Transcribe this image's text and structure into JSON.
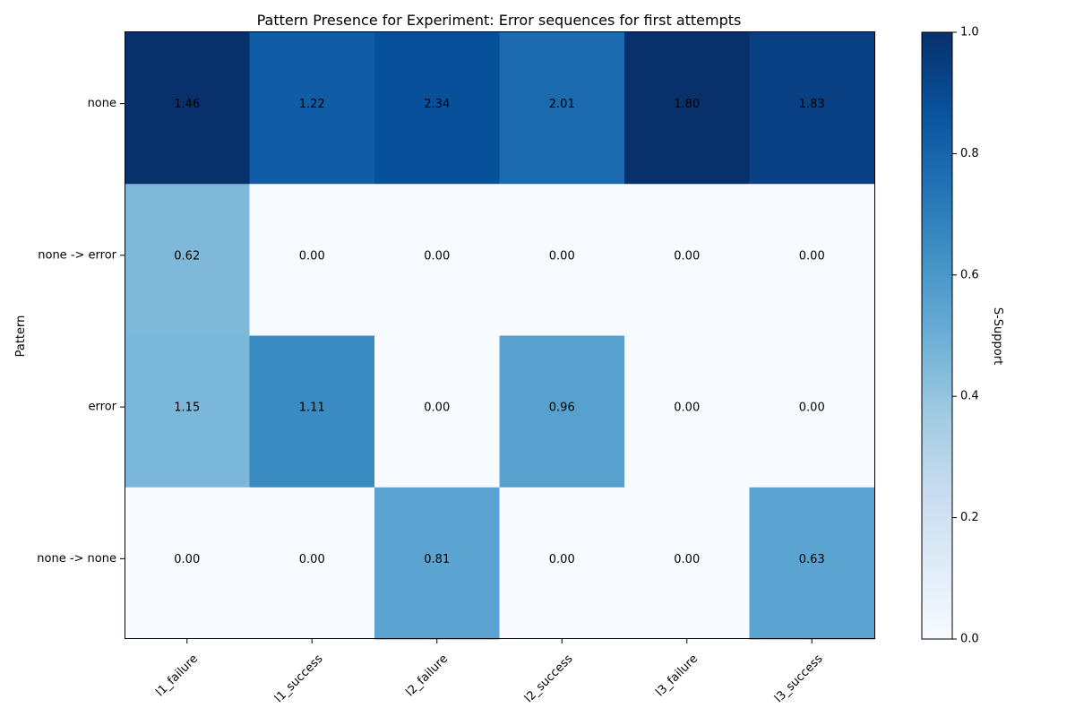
{
  "chart_data": {
    "type": "heatmap",
    "title": "Pattern Presence for Experiment: Error sequences for first attempts",
    "xlabel": "",
    "ylabel": "Pattern",
    "columns": [
      "l1_failure",
      "l1_success",
      "l2_failure",
      "l2_success",
      "l3_failure",
      "l3_success"
    ],
    "rows": [
      "none",
      "none -> error",
      "error",
      "none -> none"
    ],
    "annotations": [
      [
        "1.46",
        "1.22",
        "2.34",
        "2.01",
        "1.80",
        "1.83"
      ],
      [
        "0.62",
        "0.00",
        "0.00",
        "0.00",
        "0.00",
        "0.00"
      ],
      [
        "1.15",
        "1.11",
        "0.00",
        "0.96",
        "0.00",
        "0.00"
      ],
      [
        "0.00",
        "0.00",
        "0.81",
        "0.00",
        "0.00",
        "0.63"
      ]
    ],
    "support": [
      [
        1.0,
        0.83,
        0.88,
        0.78,
        1.0,
        0.94
      ],
      [
        0.45,
        0.0,
        0.0,
        0.0,
        0.0,
        0.0
      ],
      [
        0.46,
        0.65,
        0.0,
        0.56,
        0.0,
        0.0
      ],
      [
        0.0,
        0.0,
        0.55,
        0.0,
        0.0,
        0.55
      ]
    ],
    "colorbar": {
      "label": "S-Support",
      "range": [
        0.0,
        1.0
      ],
      "ticks": [
        "0.0",
        "0.2",
        "0.4",
        "0.6",
        "0.8",
        "1.0"
      ],
      "colormap": "Blues"
    },
    "grid": false
  }
}
